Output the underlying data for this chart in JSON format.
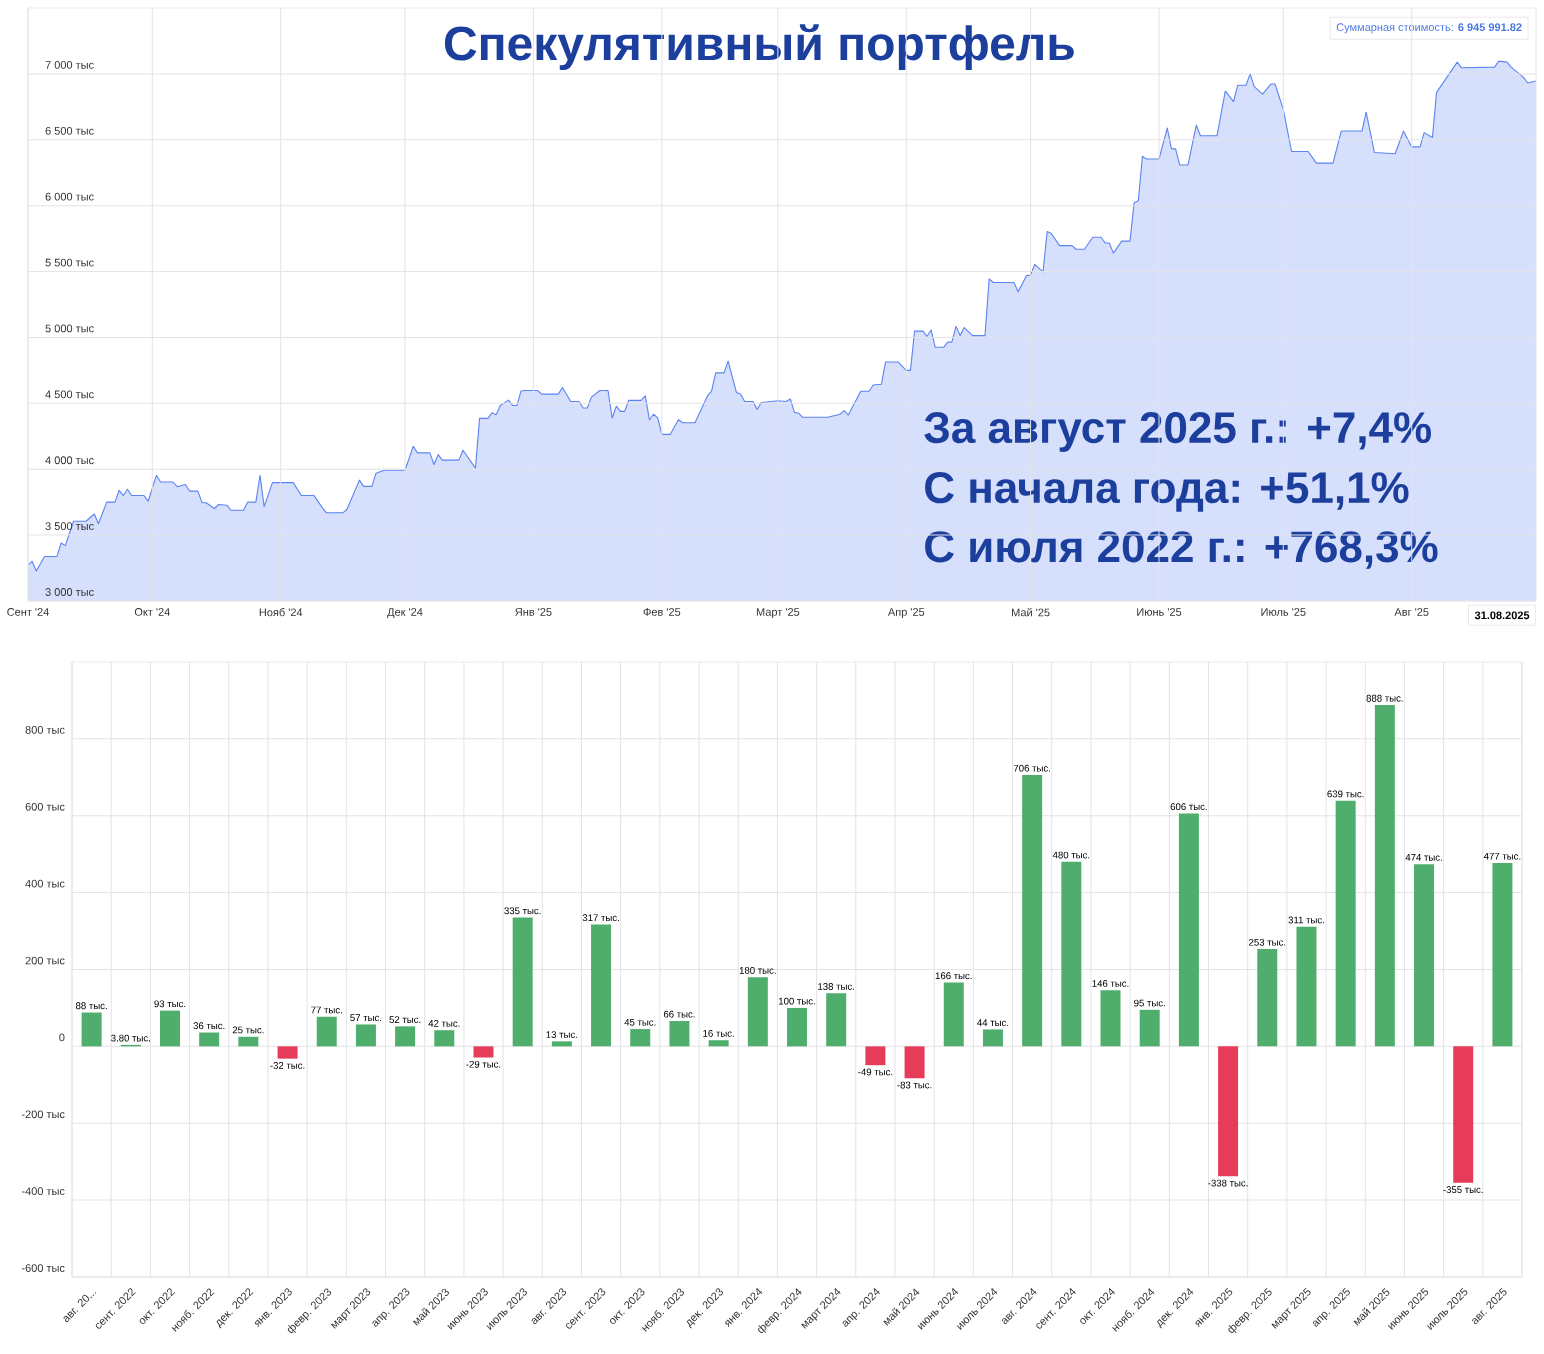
{
  "chart_data": [
    {
      "type": "area",
      "title": "Спекулятивный портфель",
      "color": "#5b83f2",
      "grid": true,
      "xlim": [
        "2024-09-01",
        "2025-08-31"
      ],
      "ylim": [
        3000,
        7500
      ],
      "xticks": [
        {
          "value": "2024-09-01",
          "label": "Сент '24"
        },
        {
          "value": "2024-10-01",
          "label": "Окт '24"
        },
        {
          "value": "2024-11-01",
          "label": "Нояб '24"
        },
        {
          "value": "2024-12-01",
          "label": "Дек '24"
        },
        {
          "value": "2025-01-01",
          "label": "Янв '25"
        },
        {
          "value": "2025-02-01",
          "label": "Фев '25"
        },
        {
          "value": "2025-03-01",
          "label": "Март '25"
        },
        {
          "value": "2025-04-01",
          "label": "Апр '25"
        },
        {
          "value": "2025-05-01",
          "label": "Май '25"
        },
        {
          "value": "2025-06-01",
          "label": "Июнь '25"
        },
        {
          "value": "2025-07-01",
          "label": "Июль '25"
        },
        {
          "value": "2025-08-01",
          "label": "Авг '25"
        }
      ],
      "yticks": [
        {
          "value": 3000,
          "label": "3 000 тыс"
        },
        {
          "value": 3500,
          "label": "3 500 тыс"
        },
        {
          "value": 4000,
          "label": "4 000 тыс"
        },
        {
          "value": 4500,
          "label": "4 500 тыс"
        },
        {
          "value": 5000,
          "label": "5 000 тыс"
        },
        {
          "value": 5500,
          "label": "5 500 тыс"
        },
        {
          "value": 6000,
          "label": "6 000 тыс"
        },
        {
          "value": 6500,
          "label": "6 500 тыс"
        },
        {
          "value": 7000,
          "label": "7 000 тыс"
        }
      ],
      "x": [
        "2024-09-01",
        "2024-09-02",
        "2024-09-03",
        "2024-09-05",
        "2024-09-08",
        "2024-09-09",
        "2024-09-10",
        "2024-09-12",
        "2024-09-15",
        "2024-09-17",
        "2024-09-18",
        "2024-09-20",
        "2024-09-22",
        "2024-09-23",
        "2024-09-24",
        "2024-09-25",
        "2024-09-26",
        "2024-09-29",
        "2024-09-30",
        "2024-10-02",
        "2024-10-03",
        "2024-10-06",
        "2024-10-07",
        "2024-10-09",
        "2024-10-10",
        "2024-10-12",
        "2024-10-13",
        "2024-10-14",
        "2024-10-16",
        "2024-10-17",
        "2024-10-19",
        "2024-10-20",
        "2024-10-23",
        "2024-10-24",
        "2024-10-26",
        "2024-10-27",
        "2024-10-28",
        "2024-10-30",
        "2024-11-04",
        "2024-11-06",
        "2024-11-09",
        "2024-11-11",
        "2024-11-12",
        "2024-11-16",
        "2024-11-17",
        "2024-11-20",
        "2024-11-21",
        "2024-11-23",
        "2024-11-24",
        "2024-11-26",
        "2024-12-01",
        "2024-12-03",
        "2024-12-04",
        "2024-12-07",
        "2024-12-08",
        "2024-12-09",
        "2024-12-10",
        "2024-12-14",
        "2024-12-15",
        "2024-12-18",
        "2024-12-19",
        "2024-12-21",
        "2024-12-22",
        "2024-12-23",
        "2024-12-24",
        "2024-12-26",
        "2024-12-27",
        "2024-12-28",
        "2024-12-29",
        "2024-12-30",
        "2025-01-02",
        "2025-01-03",
        "2025-01-07",
        "2025-01-08",
        "2025-01-10",
        "2025-01-12",
        "2025-01-13",
        "2025-01-14",
        "2025-01-15",
        "2025-01-17",
        "2025-01-19",
        "2025-01-20",
        "2025-01-21",
        "2025-01-22",
        "2025-01-23",
        "2025-01-24",
        "2025-01-27",
        "2025-01-28",
        "2025-01-29",
        "2025-01-30",
        "2025-01-31",
        "2025-02-01",
        "2025-02-03",
        "2025-02-05",
        "2025-02-06",
        "2025-02-09",
        "2025-02-12",
        "2025-02-13",
        "2025-02-14",
        "2025-02-16",
        "2025-02-17",
        "2025-02-19",
        "2025-02-20",
        "2025-02-21",
        "2025-02-23",
        "2025-02-24",
        "2025-02-25",
        "2025-03-01",
        "2025-03-03",
        "2025-03-04",
        "2025-03-05",
        "2025-03-06",
        "2025-03-07",
        "2025-03-13",
        "2025-03-16",
        "2025-03-17",
        "2025-03-18",
        "2025-03-21",
        "2025-03-23",
        "2025-03-24",
        "2025-03-26",
        "2025-03-27",
        "2025-03-30",
        "2025-04-01",
        "2025-04-02",
        "2025-04-03",
        "2025-04-05",
        "2025-04-06",
        "2025-04-07",
        "2025-04-08",
        "2025-04-10",
        "2025-04-11",
        "2025-04-12",
        "2025-04-13",
        "2025-04-14",
        "2025-04-15",
        "2025-04-17",
        "2025-04-20",
        "2025-04-21",
        "2025-04-22",
        "2025-04-26",
        "2025-04-27",
        "2025-04-28",
        "2025-04-30",
        "2025-05-01",
        "2025-05-02",
        "2025-05-04",
        "2025-05-05",
        "2025-05-06",
        "2025-05-08",
        "2025-05-11",
        "2025-05-12",
        "2025-05-14",
        "2025-05-16",
        "2025-05-18",
        "2025-05-19",
        "2025-05-20",
        "2025-05-21",
        "2025-05-23",
        "2025-05-25",
        "2025-05-26",
        "2025-05-27",
        "2025-05-28",
        "2025-05-29",
        "2025-06-01",
        "2025-06-03",
        "2025-06-04",
        "2025-06-05",
        "2025-06-06",
        "2025-06-08",
        "2025-06-10",
        "2025-06-11",
        "2025-06-15",
        "2025-06-17",
        "2025-06-19",
        "2025-06-20",
        "2025-06-22",
        "2025-06-23",
        "2025-06-24",
        "2025-06-26",
        "2025-06-28",
        "2025-06-29",
        "2025-07-01",
        "2025-07-03",
        "2025-07-07",
        "2025-07-09",
        "2025-07-13",
        "2025-07-15",
        "2025-07-20",
        "2025-07-21",
        "2025-07-23",
        "2025-07-28",
        "2025-07-30",
        "2025-08-01",
        "2025-08-03",
        "2025-08-04",
        "2025-08-06",
        "2025-08-07",
        "2025-08-12",
        "2025-08-13",
        "2025-08-21",
        "2025-08-22",
        "2025-08-24",
        "2025-08-25",
        "2025-08-28",
        "2025-08-29",
        "2025-08-31"
      ],
      "values": [
        3274,
        3300,
        3227,
        3338,
        3338,
        3440,
        3420,
        3605,
        3605,
        3660,
        3586,
        3750,
        3750,
        3840,
        3800,
        3848,
        3800,
        3800,
        3757,
        3953,
        3903,
        3903,
        3867,
        3884,
        3834,
        3834,
        3746,
        3746,
        3702,
        3732,
        3727,
        3688,
        3688,
        3750,
        3750,
        3953,
        3716,
        3898,
        3898,
        3801,
        3801,
        3710,
        3669,
        3669,
        3696,
        3917,
        3870,
        3870,
        3970,
        3992,
        3992,
        4174,
        4124,
        4124,
        4036,
        4110,
        4069,
        4069,
        4144,
        4008,
        4386,
        4386,
        4428,
        4414,
        4483,
        4524,
        4483,
        4483,
        4593,
        4597,
        4597,
        4570,
        4570,
        4620,
        4514,
        4514,
        4464,
        4464,
        4547,
        4597,
        4597,
        4389,
        4478,
        4439,
        4439,
        4522,
        4522,
        4556,
        4375,
        4417,
        4389,
        4264,
        4264,
        4375,
        4353,
        4353,
        4556,
        4592,
        4731,
        4731,
        4820,
        4583,
        4570,
        4514,
        4514,
        4453,
        4506,
        4520,
        4514,
        4533,
        4431,
        4425,
        4394,
        4394,
        4417,
        4444,
        4411,
        4592,
        4592,
        4639,
        4645,
        4814,
        4814,
        4750,
        4750,
        5048,
        5048,
        5009,
        5056,
        4925,
        4925,
        4964,
        4964,
        5084,
        5014,
        5075,
        5014,
        5014,
        5445,
        5417,
        5417,
        5417,
        5346,
        5469,
        5474,
        5554,
        5497,
        5803,
        5789,
        5697,
        5697,
        5669,
        5669,
        5760,
        5760,
        5717,
        5717,
        5640,
        5731,
        5731,
        6023,
        6037,
        6374,
        6354,
        6354,
        6589,
        6431,
        6431,
        6309,
        6309,
        6611,
        6531,
        6531,
        6869,
        6789,
        6914,
        6914,
        7000,
        6903,
        6846,
        6923,
        6923,
        6731,
        6411,
        6411,
        6323,
        6323,
        6566,
        6566,
        6709,
        6403,
        6394,
        6566,
        6446,
        6446,
        6554,
        6517,
        6860,
        7089,
        7046,
        7051,
        7097,
        7089,
        7051,
        6974,
        6931,
        6946
      ],
      "annotations": [
        "За август 2025 г.: +7,4%",
        "С начала года: +51,1%",
        "С июля 2022 г.: +768,3%",
        "Суммарная стоимость: **6 945 991.82**",
        "31.08.2025"
      ]
    },
    {
      "type": "bar",
      "grid": true,
      "ylim": [
        -600,
        1000
      ],
      "yticks": [
        {
          "value": -600,
          "label": "-600 тыс"
        },
        {
          "value": -400,
          "label": "-400 тыс"
        },
        {
          "value": -200,
          "label": "-200 тыс"
        },
        0,
        {
          "value": 200,
          "label": "200 тыс"
        },
        {
          "value": 400,
          "label": "400 тыс"
        },
        {
          "value": 600,
          "label": "600 тыс"
        },
        {
          "value": 800,
          "label": "800 тыс"
        }
      ],
      "categories": [
        "авг. 20...",
        "сент. 2022",
        "окт. 2022",
        "нояб. 2022",
        "дек. 2022",
        "янв. 2023",
        "февр. 2023",
        "март 2023",
        "апр. 2023",
        "май 2023",
        "июнь 2023",
        "июль 2023",
        "авг. 2023",
        "сент. 2023",
        "окт. 2023",
        "нояб. 2023",
        "дек. 2023",
        "янв. 2024",
        "февр. 2024",
        "март 2024",
        "апр. 2024",
        "май 2024",
        "июнь 2024",
        "июль 2024",
        "авг. 2024",
        "сент. 2024",
        "окт. 2024",
        "нояб. 2024",
        "дек. 2024",
        "янв. 2025",
        "февр. 2025",
        "март 2025",
        "апр. 2025",
        "май 2025",
        "июнь 2025",
        "июль 2025",
        "авг. 2025"
      ],
      "values": [
        88,
        3.8,
        93,
        36,
        25,
        -32,
        77,
        57,
        52,
        42,
        -29,
        335,
        13,
        317,
        45,
        66,
        16,
        180,
        100,
        138,
        -49,
        -83,
        166,
        44,
        706,
        480,
        146,
        95,
        606,
        -338,
        253,
        311,
        639,
        888,
        474,
        -355,
        477
      ],
      "colors": [
        "#4fae6b",
        "#4fae6b",
        "#4fae6b",
        "#4fae6b",
        "#4fae6b",
        "#e63c5a",
        "#4fae6b",
        "#4fae6b",
        "#4fae6b",
        "#4fae6b",
        "#e63c5a",
        "#4fae6b",
        "#4fae6b",
        "#4fae6b",
        "#4fae6b",
        "#4fae6b",
        "#4fae6b",
        "#4fae6b",
        "#4fae6b",
        "#4fae6b",
        "#e63c5a",
        "#e63c5a",
        "#4fae6b",
        "#4fae6b",
        "#4fae6b",
        "#4fae6b",
        "#4fae6b",
        "#4fae6b",
        "#4fae6b",
        "#e63c5a",
        "#4fae6b",
        "#4fae6b",
        "#4fae6b",
        "#4fae6b",
        "#4fae6b",
        "#e63c5a",
        "#4fae6b"
      ],
      "value_labels": [
        "88 тыс.",
        "3.80 тыс.",
        "93 тыс.",
        "36 тыс.",
        "25 тыс.",
        "-32 тыс.",
        "77 тыс.",
        "57 тыс.",
        "52 тыс.",
        "42 тыс.",
        "-29 тыс.",
        "335 тыс.",
        "13 тыс.",
        "317 тыс.",
        "45 тыс.",
        "66 тыс.",
        "16 тыс.",
        "180 тыс.",
        "100 тыс.",
        "138 тыс.",
        "-49 тыс.",
        "-83 тыс.",
        "166 тыс.",
        "44 тыс.",
        "706 тыс.",
        "480 тыс.",
        "146 тыс.",
        "95 тыс.",
        "606 тыс.",
        "-338 тыс.",
        "253 тыс.",
        "311 тыс.",
        "639 тыс.",
        "888 тыс.",
        "474 тыс.",
        "-355 тыс.",
        "477 тыс."
      ]
    }
  ]
}
